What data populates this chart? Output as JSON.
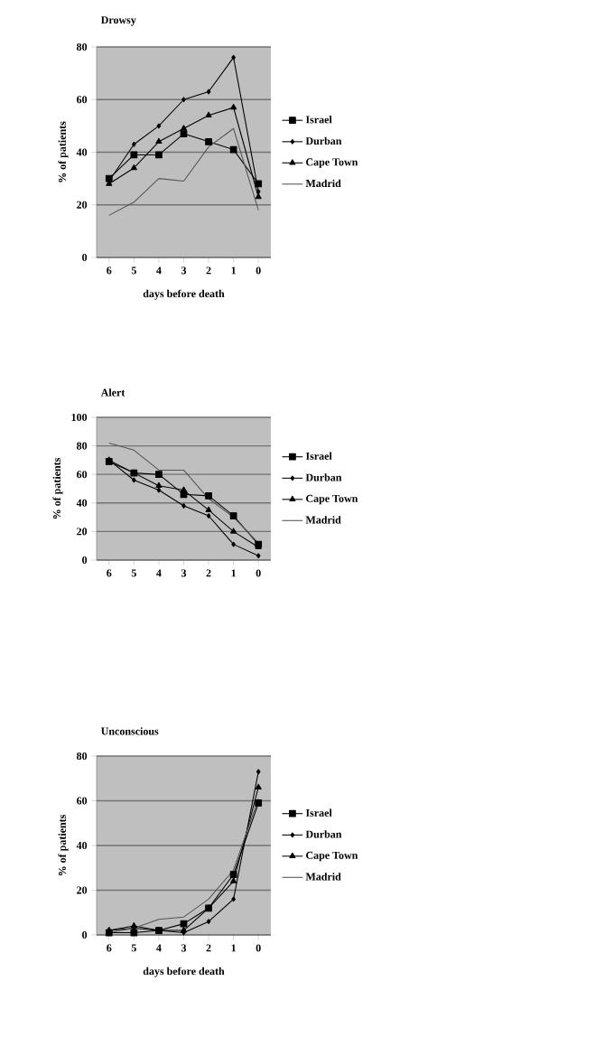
{
  "chart_data": [
    {
      "type": "line",
      "title": "Drowsy",
      "xlabel": "days before death",
      "ylabel": "% of patients",
      "categories": [
        "6",
        "5",
        "4",
        "3",
        "2",
        "1",
        "0"
      ],
      "ylim": [
        0,
        80
      ],
      "yticks": [
        0,
        20,
        40,
        60,
        80
      ],
      "grid": "y",
      "legend": "right",
      "series": [
        {
          "name": "Israel",
          "color": "#000000",
          "marker": "square",
          "values": [
            30,
            39,
            39,
            47,
            44,
            41,
            28
          ]
        },
        {
          "name": "Durban",
          "color": "#000000",
          "marker": "diamond",
          "values": [
            29,
            43,
            50,
            60,
            63,
            76,
            25
          ]
        },
        {
          "name": "Cape Town",
          "color": "#000000",
          "marker": "triangle",
          "values": [
            28,
            34,
            44,
            49,
            54,
            57,
            23
          ]
        },
        {
          "name": "Madrid",
          "color": "#555555",
          "marker": "none",
          "values": [
            16,
            21,
            30,
            29,
            42,
            49,
            18
          ]
        }
      ]
    },
    {
      "type": "line",
      "title": "Alert",
      "ylabel": "% of patients",
      "categories": [
        "6",
        "5",
        "4",
        "3",
        "2",
        "1",
        "0"
      ],
      "ylim": [
        0,
        100
      ],
      "yticks": [
        0,
        20,
        40,
        60,
        80,
        100
      ],
      "grid": "y",
      "legend": "right",
      "series": [
        {
          "name": "Israel",
          "color": "#000000",
          "marker": "square",
          "values": [
            69,
            61,
            60,
            46,
            45,
            31,
            11
          ]
        },
        {
          "name": "Durban",
          "color": "#000000",
          "marker": "diamond",
          "values": [
            70,
            56,
            49,
            38,
            31,
            11,
            3
          ]
        },
        {
          "name": "Cape Town",
          "color": "#000000",
          "marker": "triangle",
          "values": [
            70,
            61,
            52,
            49,
            35,
            20,
            9
          ]
        },
        {
          "name": "Madrid",
          "color": "#555555",
          "marker": "none",
          "values": [
            82,
            77,
            63,
            63,
            43,
            30,
            12
          ]
        }
      ]
    },
    {
      "type": "line",
      "title": "Unconscious",
      "xlabel": "days before death",
      "ylabel": "% of patients",
      "categories": [
        "6",
        "5",
        "4",
        "3",
        "2",
        "1",
        "0"
      ],
      "ylim": [
        0,
        80
      ],
      "yticks": [
        0,
        20,
        40,
        60,
        80
      ],
      "grid": "y",
      "legend": "right",
      "series": [
        {
          "name": "Israel",
          "color": "#000000",
          "marker": "square",
          "values": [
            1,
            1,
            2,
            5,
            12,
            27,
            59
          ]
        },
        {
          "name": "Durban",
          "color": "#000000",
          "marker": "diamond",
          "values": [
            2,
            3,
            2,
            1,
            6,
            16,
            73
          ]
        },
        {
          "name": "Cape Town",
          "color": "#000000",
          "marker": "triangle",
          "values": [
            2,
            4,
            2,
            2,
            12,
            24,
            66
          ]
        },
        {
          "name": "Madrid",
          "color": "#555555",
          "marker": "none",
          "values": [
            1,
            3,
            7,
            8,
            16,
            29,
            61
          ]
        }
      ]
    }
  ]
}
